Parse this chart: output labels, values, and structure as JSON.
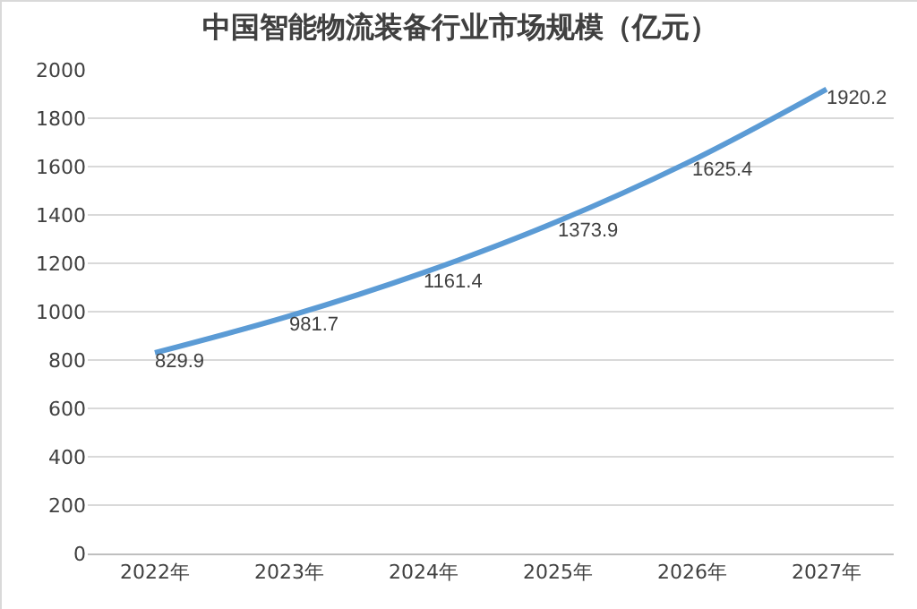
{
  "chart_data": {
    "type": "line",
    "title": "中国智能物流装备行业市场规模（亿元）",
    "categories": [
      "2022年",
      "2023年",
      "2024年",
      "2025年",
      "2026年",
      "2027年"
    ],
    "series": [
      {
        "color": "#5b9bd5",
        "values": [
          829.9,
          981.7,
          1161.4,
          1373.9,
          1625.4,
          1920.2
        ]
      }
    ],
    "ylim": [
      0,
      2000
    ],
    "yticks": [
      0,
      200,
      400,
      600,
      800,
      1000,
      1200,
      1400,
      1600,
      1800,
      2000
    ],
    "grid": "y",
    "data_labels": true,
    "marker": "none",
    "line_style": "solid"
  }
}
